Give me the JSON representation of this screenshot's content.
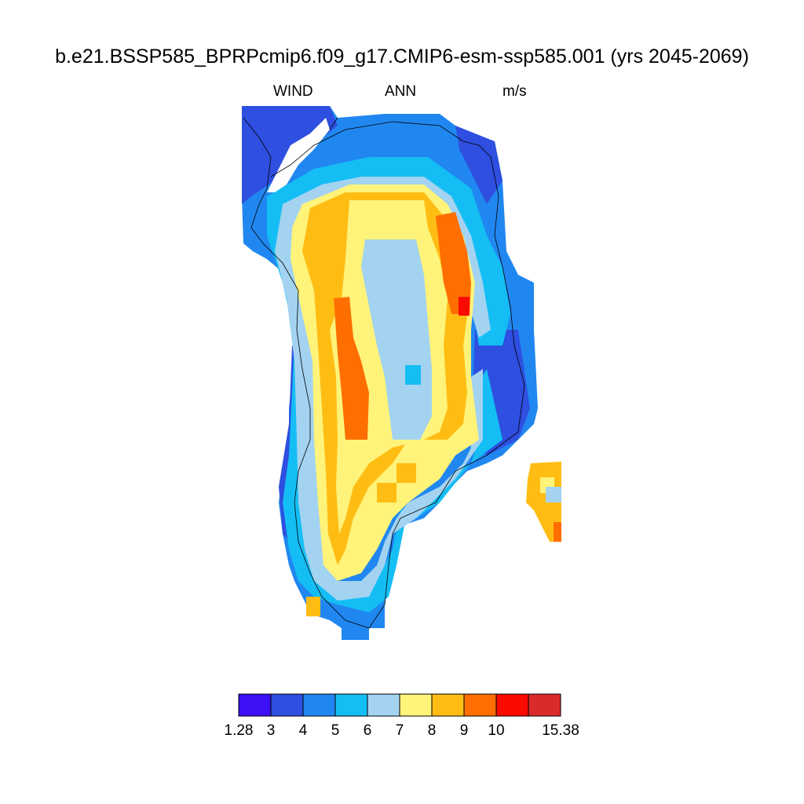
{
  "title": "b.e21.BSSP585_BPRPcmip6.f09_g17.CMIP6-esm-ssp585.001 (yrs 2045-2069)",
  "left_label": "WIND",
  "center_label": "ANN",
  "right_label": "m/s",
  "colorbar": {
    "colors": [
      "#3d10f5",
      "#2e4fe0",
      "#2187f0",
      "#14bef5",
      "#a3d3f0",
      "#fff37a",
      "#ffbd14",
      "#ff6e00",
      "#fa0a00",
      "#d92b2b"
    ],
    "labels": [
      "1.28",
      "3",
      "4",
      "5",
      "6",
      "7",
      "8",
      "9",
      "10",
      "15.38"
    ]
  },
  "legend": {
    "levels": [
      "1.28",
      "3",
      "4",
      "5",
      "6",
      "7",
      "8",
      "9",
      "10",
      "15.38"
    ]
  }
}
